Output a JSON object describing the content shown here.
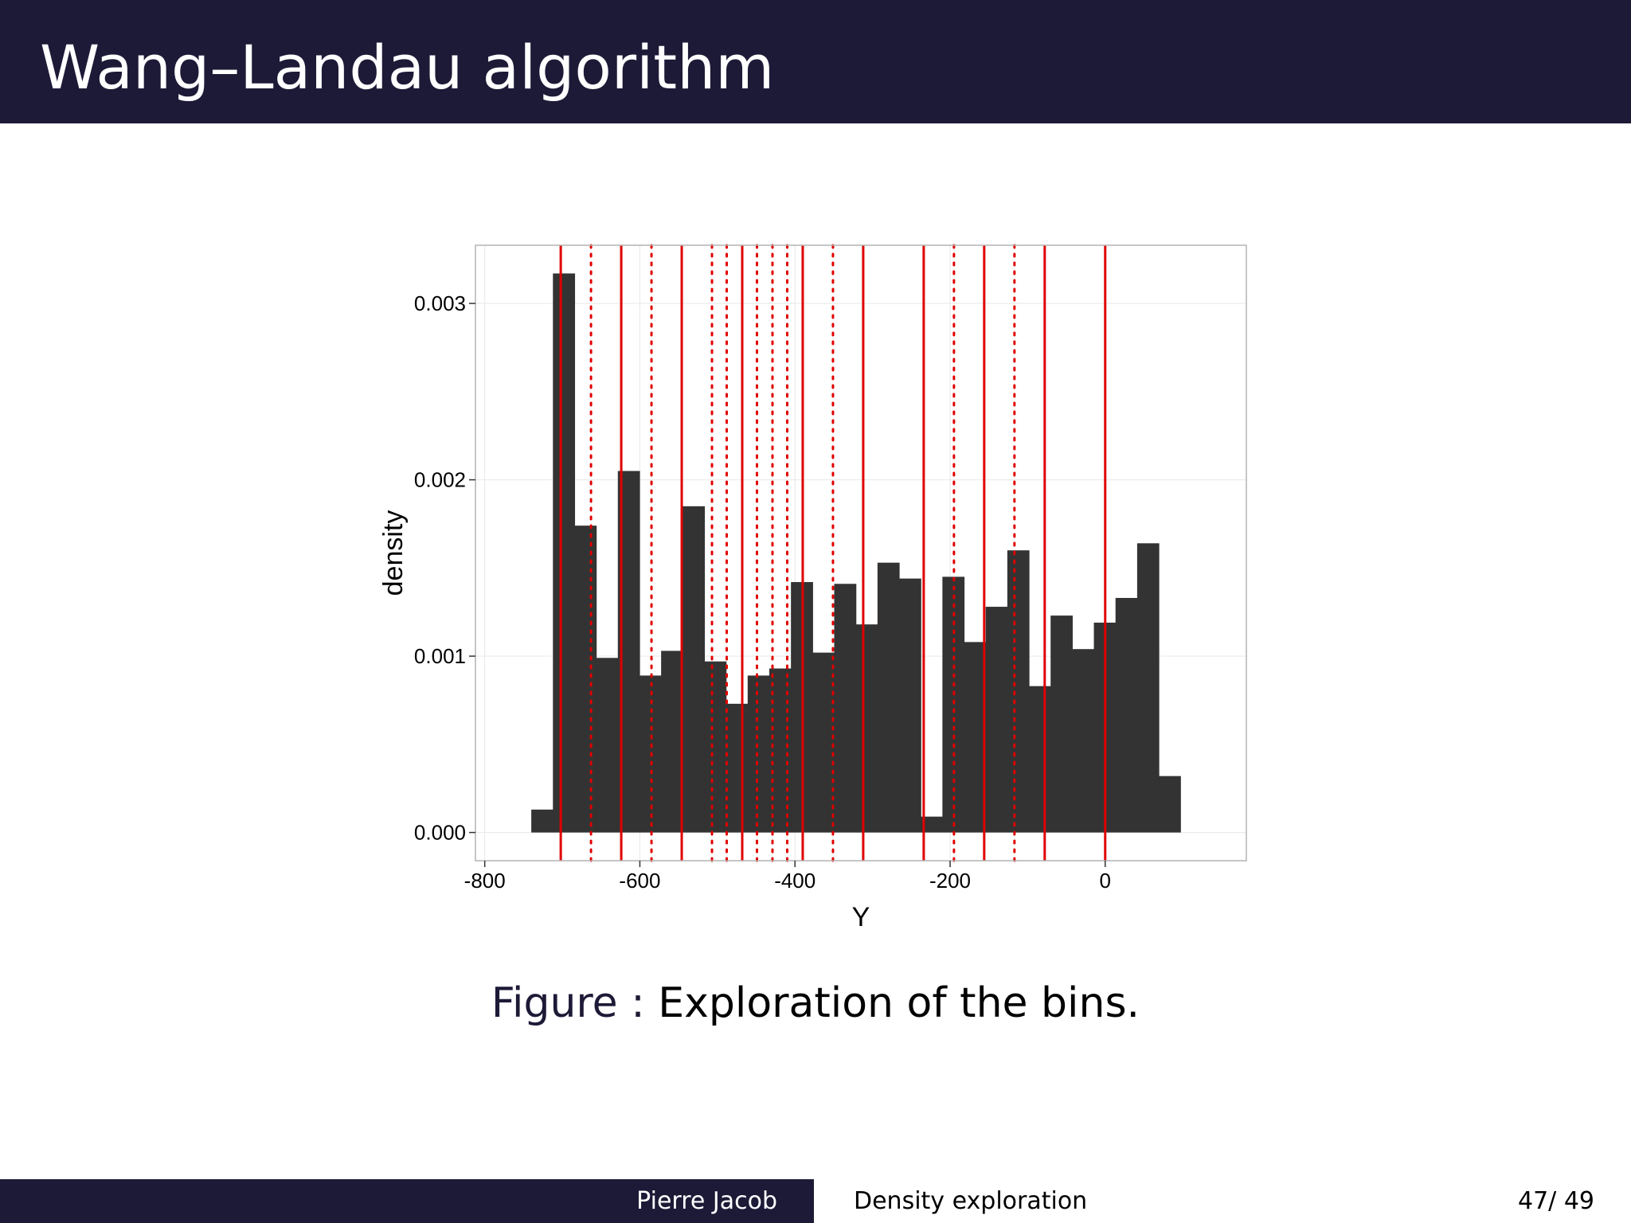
{
  "slide": {
    "title": "Wang–Landau algorithm",
    "caption_label": "Figure :",
    "caption_text": "Exploration of the bins."
  },
  "footer": {
    "author": "Pierre Jacob",
    "section": "Density exploration",
    "page": "47/ 49"
  },
  "colors": {
    "header_bg": "#1d1a37",
    "bar_fill": "#333333",
    "bin_line": "#e00000"
  },
  "chart_data": {
    "type": "bar",
    "xlabel": "Y",
    "ylabel": "density",
    "xlim": [
      -812,
      182
    ],
    "ylim": [
      -0.00016,
      0.00333
    ],
    "x_ticks": [
      -800,
      -600,
      -400,
      -200,
      0
    ],
    "x_tick_labels": [
      "-800",
      "-600",
      "-400",
      "-200",
      "0"
    ],
    "y_ticks": [
      0,
      0.001,
      0.002,
      0.003
    ],
    "y_tick_labels": [
      "0.000",
      "0.001",
      "0.002",
      "0.003"
    ],
    "grid": true,
    "bin_width": 27.9,
    "bin_start": -740,
    "values": [
      0.00013,
      0.00317,
      0.00174,
      0.00099,
      0.00205,
      0.00089,
      0.00103,
      0.00185,
      0.00097,
      0.00073,
      0.00089,
      0.00093,
      0.00142,
      0.00102,
      0.00141,
      0.00118,
      0.00153,
      0.00144,
      9e-05,
      0.00145,
      0.00108,
      0.00128,
      0.0016,
      0.00083,
      0.00123,
      0.00104,
      0.00119,
      0.00133,
      0.00164,
      0.00032
    ],
    "solid_lines": [
      -702,
      -624,
      -546,
      -468,
      -390,
      -312,
      -234,
      -156,
      -78,
      0
    ],
    "dotted_lines": [
      -663,
      -585,
      -507,
      -488,
      -449,
      -429,
      -410,
      -351,
      -195,
      -117
    ]
  }
}
